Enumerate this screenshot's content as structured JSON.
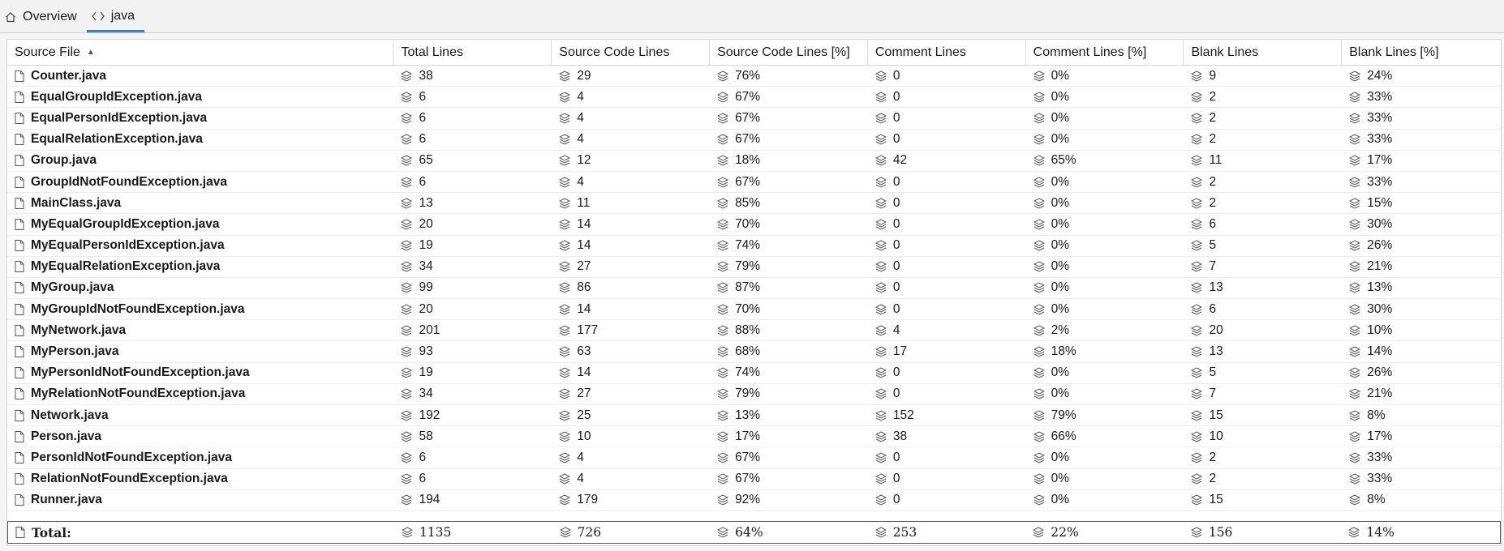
{
  "tabs": [
    {
      "label": "Overview",
      "icon": "home-icon",
      "active": false
    },
    {
      "label": "java",
      "icon": "code-brackets-icon",
      "active": true
    }
  ],
  "columns": [
    "Source File",
    "Total Lines",
    "Source Code Lines",
    "Source Code Lines [%]",
    "Comment Lines",
    "Comment Lines [%]",
    "Blank Lines",
    "Blank Lines [%]"
  ],
  "rows": [
    [
      "Counter.java",
      "38",
      "29",
      "76%",
      "0",
      "0%",
      "9",
      "24%"
    ],
    [
      "EqualGroupIdException.java",
      "6",
      "4",
      "67%",
      "0",
      "0%",
      "2",
      "33%"
    ],
    [
      "EqualPersonIdException.java",
      "6",
      "4",
      "67%",
      "0",
      "0%",
      "2",
      "33%"
    ],
    [
      "EqualRelationException.java",
      "6",
      "4",
      "67%",
      "0",
      "0%",
      "2",
      "33%"
    ],
    [
      "Group.java",
      "65",
      "12",
      "18%",
      "42",
      "65%",
      "11",
      "17%"
    ],
    [
      "GroupIdNotFoundException.java",
      "6",
      "4",
      "67%",
      "0",
      "0%",
      "2",
      "33%"
    ],
    [
      "MainClass.java",
      "13",
      "11",
      "85%",
      "0",
      "0%",
      "2",
      "15%"
    ],
    [
      "MyEqualGroupIdException.java",
      "20",
      "14",
      "70%",
      "0",
      "0%",
      "6",
      "30%"
    ],
    [
      "MyEqualPersonIdException.java",
      "19",
      "14",
      "74%",
      "0",
      "0%",
      "5",
      "26%"
    ],
    [
      "MyEqualRelationException.java",
      "34",
      "27",
      "79%",
      "0",
      "0%",
      "7",
      "21%"
    ],
    [
      "MyGroup.java",
      "99",
      "86",
      "87%",
      "0",
      "0%",
      "13",
      "13%"
    ],
    [
      "MyGroupIdNotFoundException.java",
      "20",
      "14",
      "70%",
      "0",
      "0%",
      "6",
      "30%"
    ],
    [
      "MyNetwork.java",
      "201",
      "177",
      "88%",
      "4",
      "2%",
      "20",
      "10%"
    ],
    [
      "MyPerson.java",
      "93",
      "63",
      "68%",
      "17",
      "18%",
      "13",
      "14%"
    ],
    [
      "MyPersonIdNotFoundException.java",
      "19",
      "14",
      "74%",
      "0",
      "0%",
      "5",
      "26%"
    ],
    [
      "MyRelationNotFoundException.java",
      "34",
      "27",
      "79%",
      "0",
      "0%",
      "7",
      "21%"
    ],
    [
      "Network.java",
      "192",
      "25",
      "13%",
      "152",
      "79%",
      "15",
      "8%"
    ],
    [
      "Person.java",
      "58",
      "10",
      "17%",
      "38",
      "66%",
      "10",
      "17%"
    ],
    [
      "PersonIdNotFoundException.java",
      "6",
      "4",
      "67%",
      "0",
      "0%",
      "2",
      "33%"
    ],
    [
      "RelationNotFoundException.java",
      "6",
      "4",
      "67%",
      "0",
      "0%",
      "2",
      "33%"
    ],
    [
      "Runner.java",
      "194",
      "179",
      "92%",
      "0",
      "0%",
      "15",
      "8%"
    ]
  ],
  "total": [
    "Total:",
    "1135",
    "726",
    "64%",
    "253",
    "22%",
    "156",
    "14%"
  ],
  "sort": {
    "column": "Source File",
    "direction": "ascending"
  }
}
